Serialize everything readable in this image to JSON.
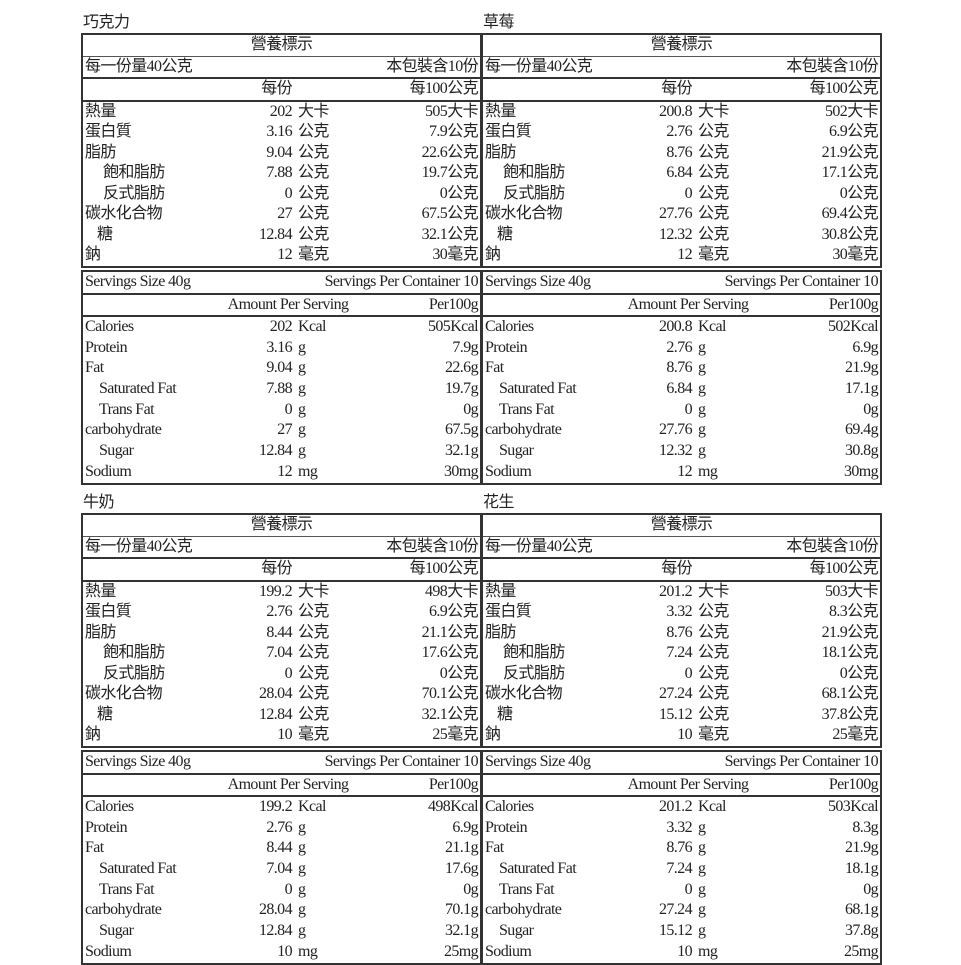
{
  "zh_labels": {
    "title": "營養標示",
    "serving": "每一份量40公克",
    "container": "本包裝含10份",
    "per_serving": "每份",
    "per100": "每100公克",
    "rows": [
      "熱量",
      "蛋白質",
      "脂肪",
      "飽和脂肪",
      "反式脂肪",
      "碳水化合物",
      "糖",
      "鈉"
    ],
    "units": [
      "大卡",
      "公克",
      "公克",
      "公克",
      "公克",
      "公克",
      "公克",
      "毫克"
    ]
  },
  "en_labels": {
    "serving": "Servings Size 40g",
    "container": "Servings Per Container 10",
    "per_serving": "Amount Per Serving",
    "per100": "Per100g",
    "rows": [
      "Calories",
      "Protein",
      "Fat",
      "Saturated Fat",
      "Trans Fat",
      "carbohydrate",
      "Sugar",
      "Sodium"
    ],
    "units": [
      "Kcal",
      "g",
      "g",
      "g",
      "g",
      "g",
      "g",
      "mg"
    ]
  },
  "panels": [
    {
      "name": "巧克力",
      "amounts": [
        "202",
        "3.16",
        "9.04",
        "7.88",
        "0",
        "27",
        "12.84",
        "12"
      ],
      "per100": [
        "505",
        "7.9",
        "22.6",
        "19.7",
        "0",
        "67.5",
        "32.1",
        "30"
      ]
    },
    {
      "name": "草莓",
      "amounts": [
        "200.8",
        "2.76",
        "8.76",
        "6.84",
        "0",
        "27.76",
        "12.32",
        "12"
      ],
      "per100": [
        "502",
        "6.9",
        "21.9",
        "17.1",
        "0",
        "69.4",
        "30.8",
        "30"
      ]
    },
    {
      "name": "牛奶",
      "amounts": [
        "199.2",
        "2.76",
        "8.44",
        "7.04",
        "0",
        "28.04",
        "12.84",
        "10"
      ],
      "per100": [
        "498",
        "6.9",
        "21.1",
        "17.6",
        "0",
        "70.1",
        "32.1",
        "25"
      ]
    },
    {
      "name": "花生",
      "amounts": [
        "201.2",
        "3.32",
        "8.76",
        "7.24",
        "0",
        "27.24",
        "15.12",
        "10"
      ],
      "per100": [
        "503",
        "8.3",
        "21.9",
        "18.1",
        "0",
        "68.1",
        "37.8",
        "25"
      ]
    }
  ]
}
